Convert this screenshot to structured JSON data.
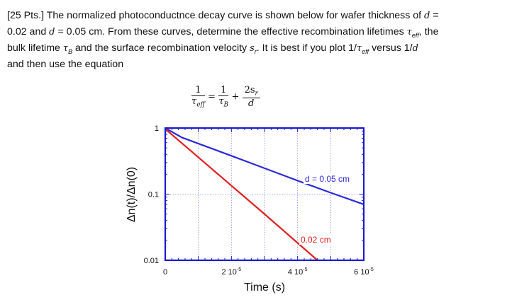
{
  "problem": {
    "line1_a": "[25 Pts.] The normalized photoconductnce decay curve is shown below for wafer thickness of ",
    "line1_b": " =",
    "line2_a": "0.02 and ",
    "line2_b": " = 0.05 cm. From these curves, determine the effective recombination lifetimes ",
    "line2_c": ", the",
    "line3_a": "bulk lifetime ",
    "line3_b": " and the surface recombination velocity ",
    "line3_c": ". It is best if you plot 1/",
    "line3_d": " versus 1/",
    "line4": "and then use the equation",
    "var_d": "d",
    "tau": "τ",
    "sub_eff": "eff",
    "sub_B": "B",
    "s": "s",
    "sub_r": "r",
    "eq_one": "1",
    "eq_two_s": "2s",
    "eq_equals": "=",
    "eq_plus": "+"
  },
  "chart_data": {
    "type": "line",
    "xlabel": "Time (s)",
    "ylabel": "Δn(t)/Δn(0)",
    "xlim": [
      0,
      6e-05
    ],
    "ylim": [
      0.01,
      1
    ],
    "yscale": "log",
    "x_tick_labels": [
      "0",
      "2 10-5",
      "4 10-5",
      "6 10-5"
    ],
    "y_tick_labels": [
      "1",
      "0.1",
      "0.01"
    ],
    "grid": true,
    "series": [
      {
        "name": "d = 0.05 cm",
        "color": "#2b2bd8",
        "x": [
          0,
          5e-06,
          2e-05,
          4e-05,
          5e-05,
          6e-05
        ],
        "y": [
          1,
          0.72,
          0.38,
          0.16,
          0.105,
          0.07
        ]
      },
      {
        "name": "0.02 cm",
        "color": "#e02020",
        "x": [
          0,
          3e-05,
          4.6e-05
        ],
        "y": [
          0.97,
          0.05,
          0.01
        ]
      }
    ],
    "frame_color": "#1a1ad0"
  }
}
